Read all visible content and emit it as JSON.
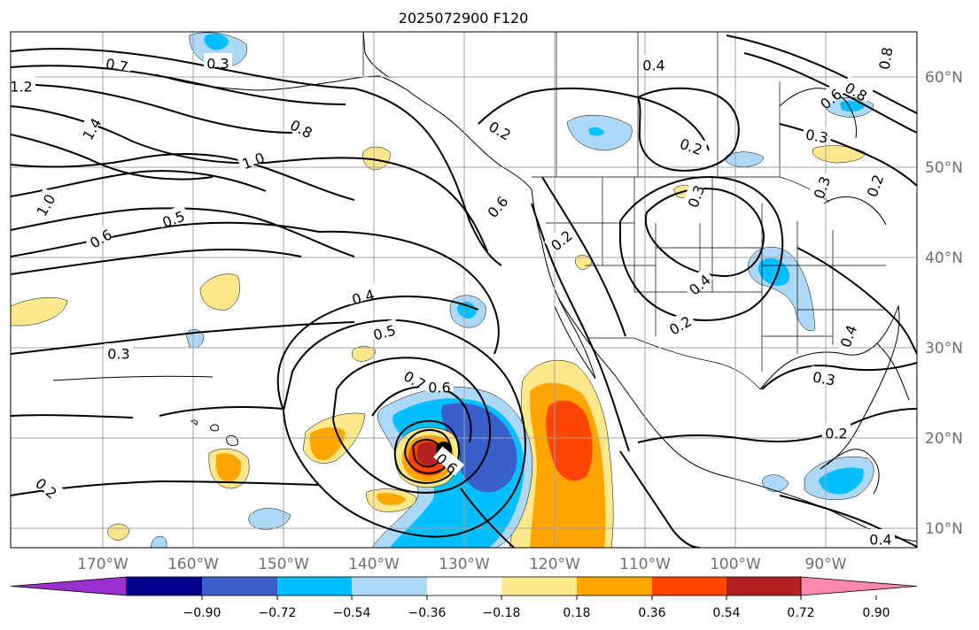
{
  "title": "2025072900 F120",
  "longitude_labels": [
    "170°W",
    "160°W",
    "150°W",
    "140°W",
    "130°W",
    "120°W",
    "110°W",
    "100°W",
    "90°W"
  ],
  "latitude_labels": [
    "60°N",
    "50°N",
    "40°N",
    "30°N",
    "20°N",
    "10°N"
  ],
  "contour_labels": [
    "0.3",
    "0.7",
    "1.2",
    "1.4",
    "0.8",
    "1.0",
    "1.0",
    "0.6",
    "0.5",
    "0.4",
    "0.5",
    "0.3",
    "0.7",
    "0.6",
    "0.6",
    "0.2",
    "0.2",
    "0.6",
    "0.2",
    "0.3",
    "0.4",
    "0.2",
    "0.4",
    "0.2",
    "0.8",
    "0.3",
    "0.2",
    "0.3",
    "0.2",
    "0.4",
    "0.6",
    "0.8",
    "0.3",
    "0.4"
  ],
  "colorbar": {
    "tick_labels": [
      "−0.90",
      "−0.72",
      "−0.54",
      "−0.36",
      "−0.18",
      "0.18",
      "0.36",
      "0.54",
      "0.72",
      "0.90"
    ],
    "colors": [
      "#9b30d0",
      "#00008b",
      "#3a5fcd",
      "#00bfff",
      "#add8f7",
      "#ffffff",
      "#ffe88c",
      "#ffa500",
      "#ff4500",
      "#b22222",
      "#ff88b0"
    ]
  },
  "fill_colors": {
    "light_blue": "#add8f7",
    "blue": "#00bfff",
    "royal_blue": "#3a5fcd",
    "yellow": "#ffe88c",
    "orange": "#ffa500",
    "red_orange": "#ff4500",
    "dark_red": "#b22222"
  }
}
